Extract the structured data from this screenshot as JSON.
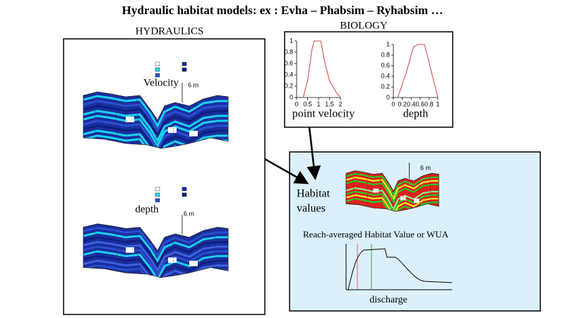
{
  "title": "Hydraulic habitat models: ex : Evha – Phabsim – Ryhabsim …",
  "hydraulics": {
    "label": "HYDRAULICS",
    "velocity_label": "Velocity",
    "depth_label": "depth",
    "scale_labels": [
      "6 m",
      "6 m"
    ]
  },
  "biology": {
    "label": "BIOLOGY",
    "plots": [
      {
        "xlabel": "point velocity",
        "xlim": [
          0,
          2
        ],
        "ylim": [
          0,
          1
        ],
        "xticks": [
          0,
          0.5,
          1,
          1.5,
          2
        ],
        "yticks": [
          0,
          0.2,
          0.4,
          0.6,
          0.8,
          1
        ],
        "x": [
          0.3,
          0.5,
          0.7,
          0.8,
          1.1,
          1.3,
          1.5,
          1.8,
          2
        ],
        "y": [
          0,
          0.3,
          0.85,
          1,
          1,
          0.6,
          0.3,
          0.1,
          0
        ]
      },
      {
        "xlabel": "depth",
        "xlim": [
          0,
          1
        ],
        "ylim": [
          0,
          1
        ],
        "xticks": [
          0,
          0.2,
          0.4,
          0.6,
          0.8,
          1
        ],
        "yticks": [
          0,
          0.2,
          0.4,
          0.6,
          0.8,
          1
        ],
        "x": [
          0.1,
          0.3,
          0.45,
          0.55,
          0.7,
          0.85,
          1
        ],
        "y": [
          0,
          0.5,
          0.95,
          1,
          1,
          0.5,
          0
        ]
      }
    ]
  },
  "habitat": {
    "label_lines": [
      "Habitat",
      "values"
    ],
    "scale_label": "6 m",
    "wua_title": "Reach-averaged  Habitat Value or WUA",
    "xlabel": "discharge"
  }
}
